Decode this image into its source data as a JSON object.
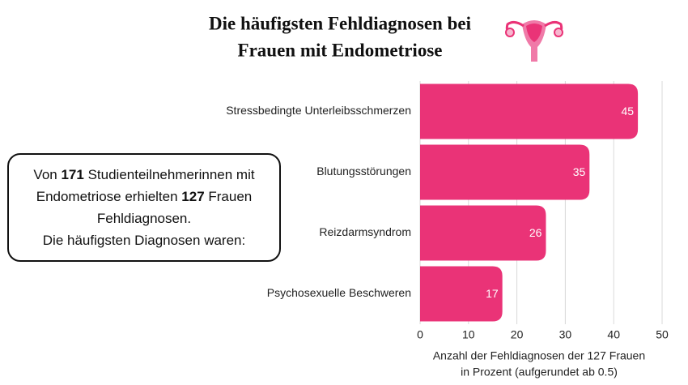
{
  "chart_data": {
    "type": "bar",
    "orientation": "horizontal",
    "title": [
      "Die häufigsten Fehldiagnosen bei",
      "Frauen mit Endometriose"
    ],
    "categories": [
      "Stressbedingte Unterleibsschmerzen",
      "Blutungsstörungen",
      "Reizdarmsyndrom",
      "Psychosexuelle Beschweren"
    ],
    "values": [
      45,
      35,
      26,
      17
    ],
    "color": "#ea3377",
    "xlim": [
      0,
      50
    ],
    "xticks": [
      0,
      10,
      20,
      30,
      40,
      50
    ],
    "grid": true,
    "x_label": [
      "Anzahl der Fehldiagnosen der 127 Frauen",
      "in Prozent (aufgerundet ab 0.5)"
    ],
    "annotation": {
      "lines": [
        [
          {
            "text": "Von ",
            "bold": false
          },
          {
            "text": "171",
            "bold": true
          },
          {
            "text": " Studienteilnehmerinnen mit",
            "bold": false
          }
        ],
        [
          {
            "text": "Endometriose erhielten ",
            "bold": false
          },
          {
            "text": "127",
            "bold": true
          },
          {
            "text": " Frauen",
            "bold": false
          }
        ],
        [
          {
            "text": "Fehldiagnosen.",
            "bold": false
          }
        ],
        [
          {
            "text": "Die häufigsten Diagnosen waren:",
            "bold": false
          }
        ]
      ]
    }
  }
}
